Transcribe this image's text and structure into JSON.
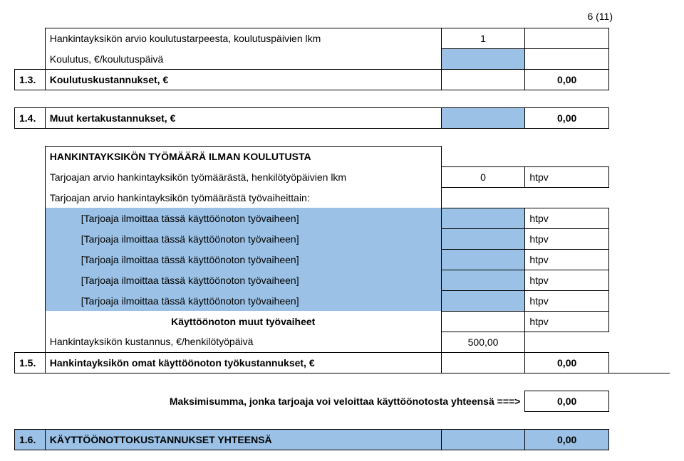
{
  "page_number": "6 (11)",
  "colors": {
    "highlight": "#9bc2e6",
    "border": "#000000",
    "background": "#ffffff",
    "text": "#000000"
  },
  "rows": {
    "r1_label": "Hankintayksikön arvio koulutustarpeesta, koulutuspäivien lkm",
    "r1_val": "1",
    "r2_label": "Koulutus, €/koulutuspäivä",
    "r3_num": "1.3.",
    "r3_label": "Koulutuskustannukset, €",
    "r3_val": "0,00",
    "r4_num": "1.4.",
    "r4_label": "Muut kertakustannukset, €",
    "r4_val": "0,00",
    "r5_label": "HANKINTAYKSIKÖN TYÖMÄÄRÄ ILMAN KOULUTUSTA",
    "r6_label": "Tarjoajan arvio hankintayksikön työmäärästä, henkilötyöpäivien lkm",
    "r6_val1": "0",
    "r6_val2": "htpv",
    "r7_label": "Tarjoajan arvio hankintayksikön työmäärästä työvaiheittain:",
    "phase_label": "[Tarjoaja ilmoittaa tässä käyttöönoton työvaiheen]",
    "phase_unit": "htpv",
    "r13_label": "Käyttöönoton muut työvaiheet",
    "r13_unit": "htpv",
    "r14_label": "Hankintayksikön kustannus, €/henkilötyöpäivä",
    "r14_val": "500,00",
    "r15_num": "1.5.",
    "r15_label": "Hankintayksikön omat käyttöönoton työkustannukset, €",
    "r15_val": "0,00",
    "r16_label": "Maksimisumma, jonka tarjoaja voi veloittaa käyttöönotosta yhteensä ===>",
    "r16_val": "0,00",
    "r17_num": "1.6.",
    "r17_label": "KÄYTTÖÖNOTTOKUSTANNUKSET YHTEENSÄ",
    "r17_val": "0,00"
  }
}
